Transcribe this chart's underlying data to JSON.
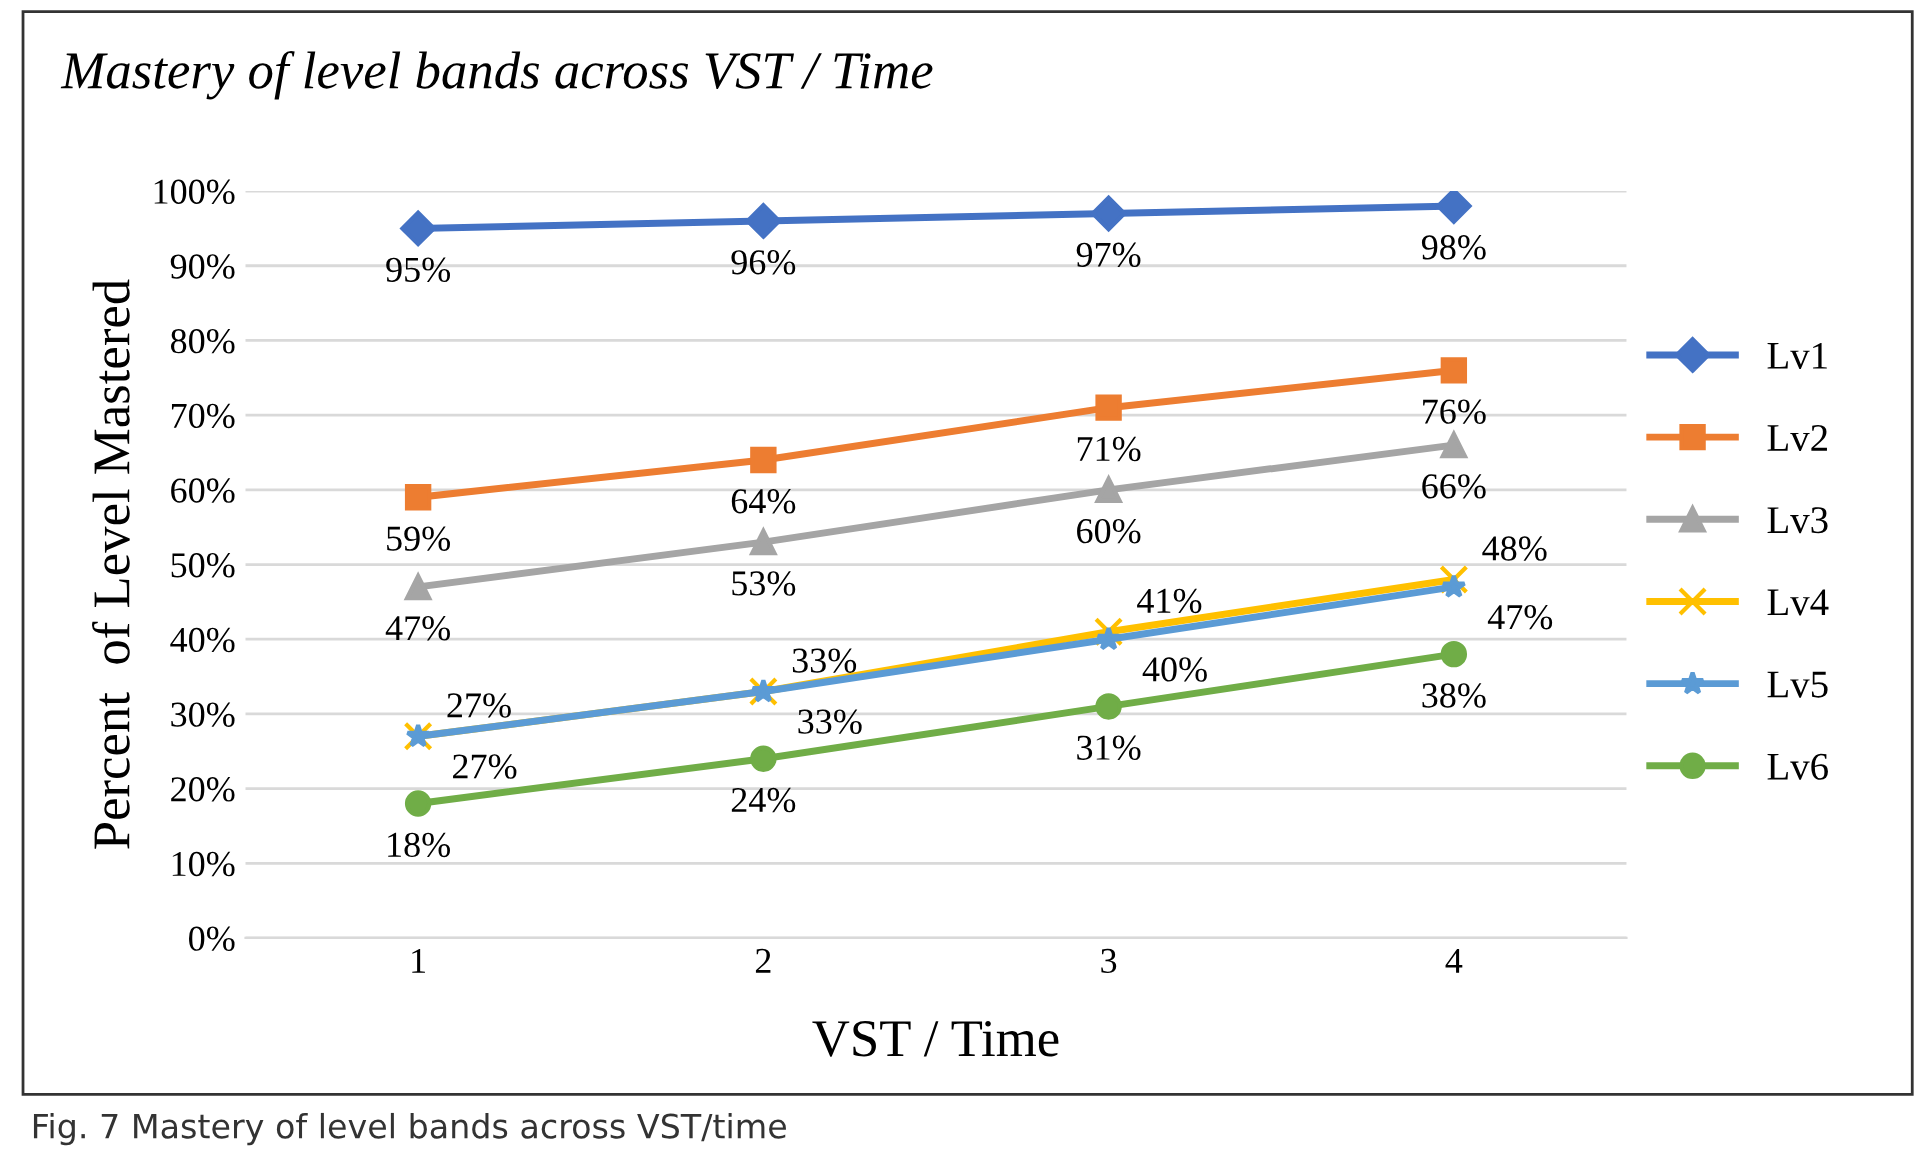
{
  "chart_data": {
    "type": "line",
    "title": "Mastery of level bands across VST / Time",
    "xlabel": "VST / Time",
    "ylabel": "Percent  of Level Mastered",
    "categories": [
      "1",
      "2",
      "3",
      "4"
    ],
    "series": [
      {
        "name": "Lv1",
        "color": "#4472c4",
        "marker": "diamond",
        "values": [
          95,
          96,
          97,
          98
        ],
        "value_labels": [
          "95%",
          "96%",
          "97%",
          "98%"
        ]
      },
      {
        "name": "Lv2",
        "color": "#ed7d31",
        "marker": "square",
        "values": [
          59,
          64,
          71,
          76
        ],
        "value_labels": [
          "59%",
          "64%",
          "71%",
          "76%"
        ]
      },
      {
        "name": "Lv3",
        "color": "#a5a5a5",
        "marker": "triangle",
        "values": [
          47,
          53,
          60,
          66
        ],
        "value_labels": [
          "47%",
          "53%",
          "60%",
          "66%"
        ]
      },
      {
        "name": "Lv4",
        "color": "#ffc000",
        "marker": "cross",
        "values": [
          27,
          33,
          41,
          48
        ],
        "value_labels": [
          "27%",
          "33%",
          "41%",
          "48%"
        ]
      },
      {
        "name": "Lv5",
        "color": "#5b9bd5",
        "marker": "star",
        "values": [
          27,
          33,
          40,
          47
        ],
        "value_labels": [
          "27%",
          "33%",
          "40%",
          "47%"
        ]
      },
      {
        "name": "Lv6",
        "color": "#70ad47",
        "marker": "circle",
        "values": [
          18,
          24,
          31,
          38
        ],
        "value_labels": [
          "18%",
          "24%",
          "31%",
          "38%"
        ]
      }
    ],
    "ylim": [
      0,
      100
    ],
    "yticks": [
      {
        "value": 0,
        "label": "0%"
      },
      {
        "value": 10,
        "label": "10%"
      },
      {
        "value": 20,
        "label": "20%"
      },
      {
        "value": 30,
        "label": "30%"
      },
      {
        "value": 40,
        "label": "40%"
      },
      {
        "value": 50,
        "label": "50%"
      },
      {
        "value": 60,
        "label": "60%"
      },
      {
        "value": 70,
        "label": "70%"
      },
      {
        "value": 80,
        "label": "80%"
      },
      {
        "value": 90,
        "label": "90%"
      },
      {
        "value": 100,
        "label": "100%"
      }
    ],
    "grid": "y",
    "legend": "right",
    "annotations": [
      "Fig. 7 Mastery of level bands across VST/time"
    ]
  }
}
